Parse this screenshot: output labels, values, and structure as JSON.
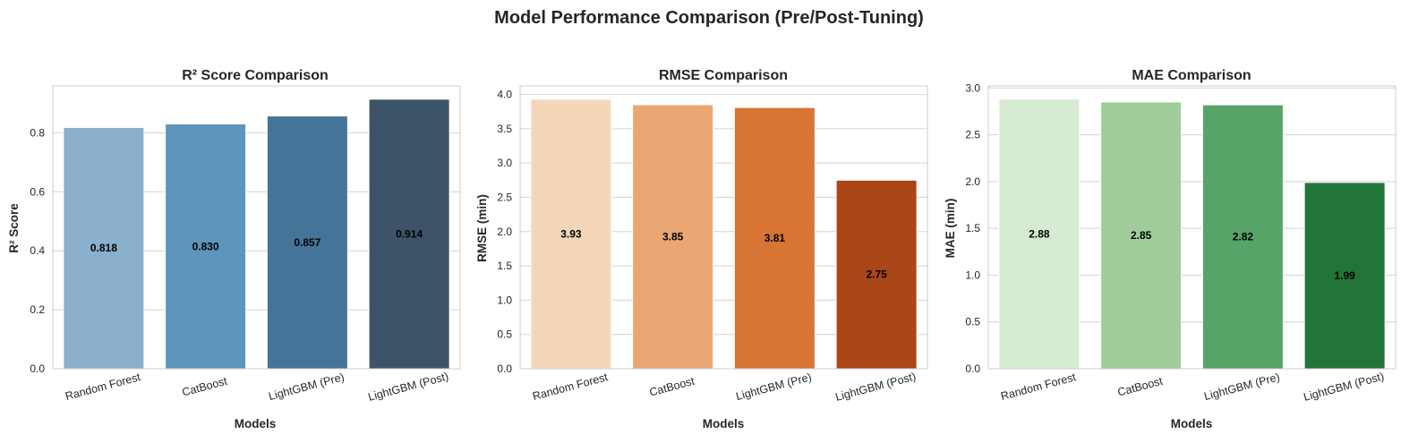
{
  "figure": {
    "title": "Model Performance Comparison (Pre/Post-Tuning)"
  },
  "chart_data": [
    {
      "type": "bar",
      "title": "R² Score Comparison",
      "xlabel": "Models",
      "ylabel": "R² Score",
      "categories": [
        "Random Forest",
        "CatBoost",
        "LightGBM (Pre)",
        "LightGBM (Post)"
      ],
      "values": [
        0.818,
        0.83,
        0.857,
        0.914
      ],
      "value_labels": [
        "0.818",
        "0.830",
        "0.857",
        "0.914"
      ],
      "colors": [
        "#8ab0cd",
        "#5d95bc",
        "#447599",
        "#3d5468"
      ],
      "ylim": [
        0,
        0.959
      ],
      "yticks": [
        0,
        0.2,
        0.4,
        0.6,
        0.8
      ],
      "ytick_labels": [
        "0.0",
        "0.2",
        "0.4",
        "0.6",
        "0.8"
      ],
      "grid": true
    },
    {
      "type": "bar",
      "title": "RMSE Comparison",
      "xlabel": "Models",
      "ylabel": "RMSE (min)",
      "categories": [
        "Random Forest",
        "CatBoost",
        "LightGBM (Pre)",
        "LightGBM (Post)"
      ],
      "values": [
        3.93,
        3.85,
        3.81,
        2.75
      ],
      "value_labels": [
        "3.93",
        "3.85",
        "3.81",
        "2.75"
      ],
      "colors": [
        "#f4d7b9",
        "#eaa774",
        "#d87535",
        "#a94719"
      ],
      "ylim": [
        0,
        4.125
      ],
      "yticks": [
        0,
        0.5,
        1.0,
        1.5,
        2.0,
        2.5,
        3.0,
        3.5,
        4.0
      ],
      "ytick_labels": [
        "0.0",
        "0.5",
        "1.0",
        "1.5",
        "2.0",
        "2.5",
        "3.0",
        "3.5",
        "4.0"
      ],
      "grid": true
    },
    {
      "type": "bar",
      "title": "MAE Comparison",
      "xlabel": "Models",
      "ylabel": "MAE (min)",
      "categories": [
        "Random Forest",
        "CatBoost",
        "LightGBM (Pre)",
        "LightGBM (Post)"
      ],
      "values": [
        2.88,
        2.85,
        2.82,
        1.99
      ],
      "value_labels": [
        "2.88",
        "2.85",
        "2.82",
        "1.99"
      ],
      "colors": [
        "#d6ebd1",
        "#a0cd9b",
        "#57a468",
        "#237439"
      ],
      "ylim": [
        0,
        3.022
      ],
      "yticks": [
        0,
        0.5,
        1.0,
        1.5,
        2.0,
        2.5,
        3.0
      ],
      "ytick_labels": [
        "0.0",
        "0.5",
        "1.0",
        "1.5",
        "2.0",
        "2.5",
        "3.0"
      ],
      "grid": true
    }
  ]
}
